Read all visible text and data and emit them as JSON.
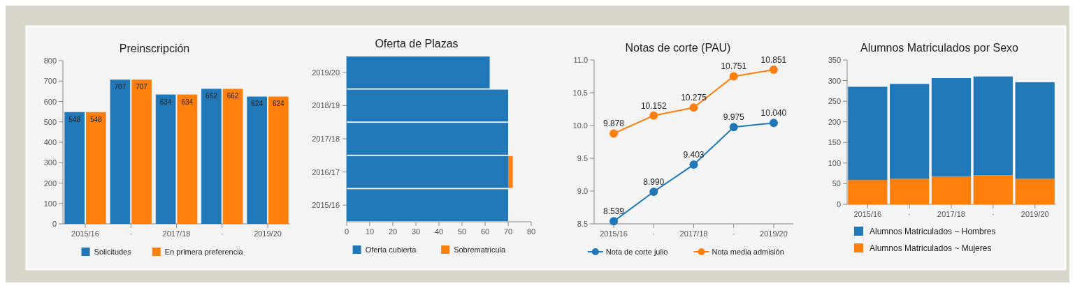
{
  "chart_data": [
    {
      "type": "bar",
      "title": "Preinscripción",
      "categories": [
        "2015/16",
        "·",
        "2017/18",
        "·",
        "2019/20"
      ],
      "series": [
        {
          "name": "Solicitudes",
          "color": "#2078b8",
          "values": [
            548,
            707,
            634,
            662,
            624
          ]
        },
        {
          "name": "En primera preferencia",
          "color": "#ff7f0e",
          "values": [
            548,
            707,
            634,
            662,
            624
          ]
        }
      ],
      "ylim": [
        0,
        800
      ],
      "yticks": [
        0,
        100,
        200,
        300,
        400,
        500,
        600,
        700,
        800
      ],
      "data_labels": true,
      "legend": "bottom",
      "grid": false
    },
    {
      "type": "bar",
      "title": "Oferta de Plazas",
      "orientation": "horizontal",
      "stacked": true,
      "categories": [
        "2019/20",
        "2018/19",
        "2017/18",
        "2016/17",
        "2015/16"
      ],
      "series": [
        {
          "name": "Oferta cubierta",
          "color": "#2078b8",
          "values": [
            62,
            70,
            70,
            70,
            70
          ]
        },
        {
          "name": "Sobrematricula",
          "color": "#ff7f0e",
          "values": [
            0,
            0,
            0,
            2,
            0
          ]
        }
      ],
      "xlim": [
        0,
        80
      ],
      "xticks": [
        0,
        10,
        20,
        30,
        40,
        50,
        60,
        70,
        80
      ],
      "legend": "bottom",
      "grid": false
    },
    {
      "type": "line",
      "title": "Notas de corte (PAU)",
      "categories": [
        "2015/16",
        "·",
        "2017/18",
        "·",
        "2019/20"
      ],
      "series": [
        {
          "name": "Nota de corte julio",
          "color": "#2078b8",
          "values": [
            8.539,
            8.99,
            9.403,
            9.975,
            10.04
          ],
          "value_labels": [
            "8.539",
            "8.990",
            "9.403",
            "9.975",
            "10.040"
          ]
        },
        {
          "name": "Nota media admisión",
          "color": "#ff7f0e",
          "values": [
            9.878,
            10.152,
            10.275,
            10.751,
            10.851
          ],
          "value_labels": [
            "9.878",
            "10.152",
            "10.275",
            "10.751",
            "10.851"
          ]
        }
      ],
      "ylim": [
        8.5,
        11
      ],
      "yticks": [
        {
          "value": 8.5,
          "label": "8.5"
        },
        {
          "value": 9,
          "label": "9.0"
        },
        {
          "value": 9.5,
          "label": "9.5"
        },
        {
          "value": 10,
          "label": "10.0"
        },
        {
          "value": 10.5,
          "label": "10.5"
        },
        {
          "value": 11,
          "label": "11.0"
        }
      ],
      "marker": "circle",
      "line_style": "solid",
      "legend": "bottom",
      "grid": false
    },
    {
      "type": "bar",
      "title": "Alumnos Matriculados por Sexo",
      "stacked": true,
      "categories": [
        "2015/16",
        "·",
        "2017/18",
        "·",
        "2019/20"
      ],
      "series": [
        {
          "name": "Alumnos Matriculados ~ Mujeres",
          "color": "#ff7f0e",
          "values": [
            59,
            62,
            68,
            71,
            62
          ]
        },
        {
          "name": "Alumnos Matriculados ~ Hombres",
          "color": "#2078b8",
          "values": [
            226,
            230,
            238,
            239,
            234
          ]
        }
      ],
      "ylim": [
        0,
        350
      ],
      "yticks": [
        0,
        50,
        100,
        150,
        200,
        250,
        300,
        350
      ],
      "legend": "bottom",
      "grid": false
    }
  ]
}
